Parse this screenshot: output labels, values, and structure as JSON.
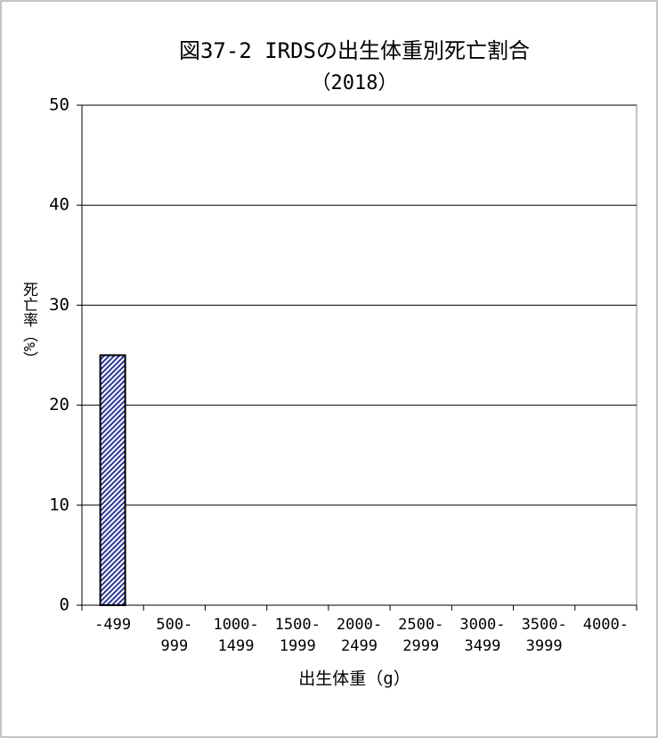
{
  "chart_data": {
    "type": "bar",
    "title": "図37-2 IRDSの出生体重別死亡割合",
    "subtitle": "（2018）",
    "x_label": "出生体重（g）",
    "y_label": "死亡率（%）",
    "categories": [
      "-499",
      "500-999",
      "1000-1499",
      "1500-1999",
      "2000-2499",
      "2500-2999",
      "3000-3499",
      "3500-3999",
      "4000-"
    ],
    "values": [
      25,
      0,
      0,
      0,
      0,
      0,
      0,
      0,
      0
    ],
    "color": "#2a3a9a",
    "ylim": [
      0,
      50
    ],
    "yticks": [
      0,
      10,
      20,
      30,
      40,
      50
    ],
    "grid": true
  }
}
